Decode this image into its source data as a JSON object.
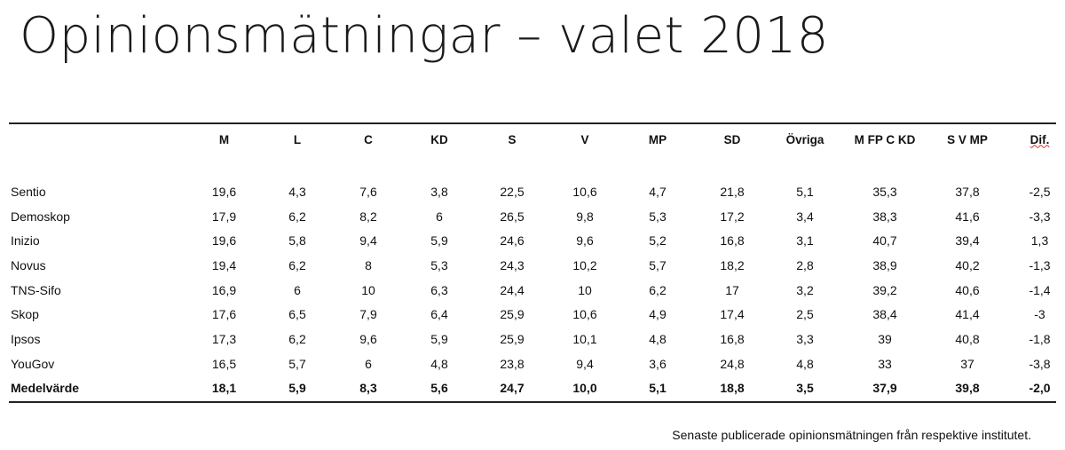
{
  "title": "Opinionsmätningar – valet 2018",
  "table": {
    "headers": [
      "",
      "M",
      "L",
      "C",
      "KD",
      "S",
      "V",
      "MP",
      "SD",
      "Övriga",
      "M FP C KD",
      "S V MP",
      "Dif."
    ],
    "rows": [
      [
        "Sentio",
        "19,6",
        "4,3",
        "7,6",
        "3,8",
        "22,5",
        "10,6",
        "4,7",
        "21,8",
        "5,1",
        "35,3",
        "37,8",
        "-2,5"
      ],
      [
        "Demoskop",
        "17,9",
        "6,2",
        "8,2",
        "6",
        "26,5",
        "9,8",
        "5,3",
        "17,2",
        "3,4",
        "38,3",
        "41,6",
        "-3,3"
      ],
      [
        "Inizio",
        "19,6",
        "5,8",
        "9,4",
        "5,9",
        "24,6",
        "9,6",
        "5,2",
        "16,8",
        "3,1",
        "40,7",
        "39,4",
        "1,3"
      ],
      [
        "Novus",
        "19,4",
        "6,2",
        "8",
        "5,3",
        "24,3",
        "10,2",
        "5,7",
        "18,2",
        "2,8",
        "38,9",
        "40,2",
        "-1,3"
      ],
      [
        "TNS-Sifo",
        "16,9",
        "6",
        "10",
        "6,3",
        "24,4",
        "10",
        "6,2",
        "17",
        "3,2",
        "39,2",
        "40,6",
        "-1,4"
      ],
      [
        "Skop",
        "17,6",
        "6,5",
        "7,9",
        "6,4",
        "25,9",
        "10,6",
        "4,9",
        "17,4",
        "2,5",
        "38,4",
        "41,4",
        "-3"
      ],
      [
        "Ipsos",
        "17,3",
        "6,2",
        "9,6",
        "5,9",
        "25,9",
        "10,1",
        "4,8",
        "16,8",
        "3,3",
        "39",
        "40,8",
        "-1,8"
      ],
      [
        "YouGov",
        "16,5",
        "5,7",
        "6",
        "4,8",
        "23,8",
        "9,4",
        "3,6",
        "24,8",
        "4,8",
        "33",
        "37",
        "-3,8"
      ]
    ],
    "average": [
      "Medelvärde",
      "18,1",
      "5,9",
      "8,3",
      "5,6",
      "24,7",
      "10,0",
      "5,1",
      "18,8",
      "3,5",
      "37,9",
      "39,8",
      "-2,0"
    ]
  },
  "footnote": "Senaste publicerade opinionsmätningen från respektive institutet."
}
